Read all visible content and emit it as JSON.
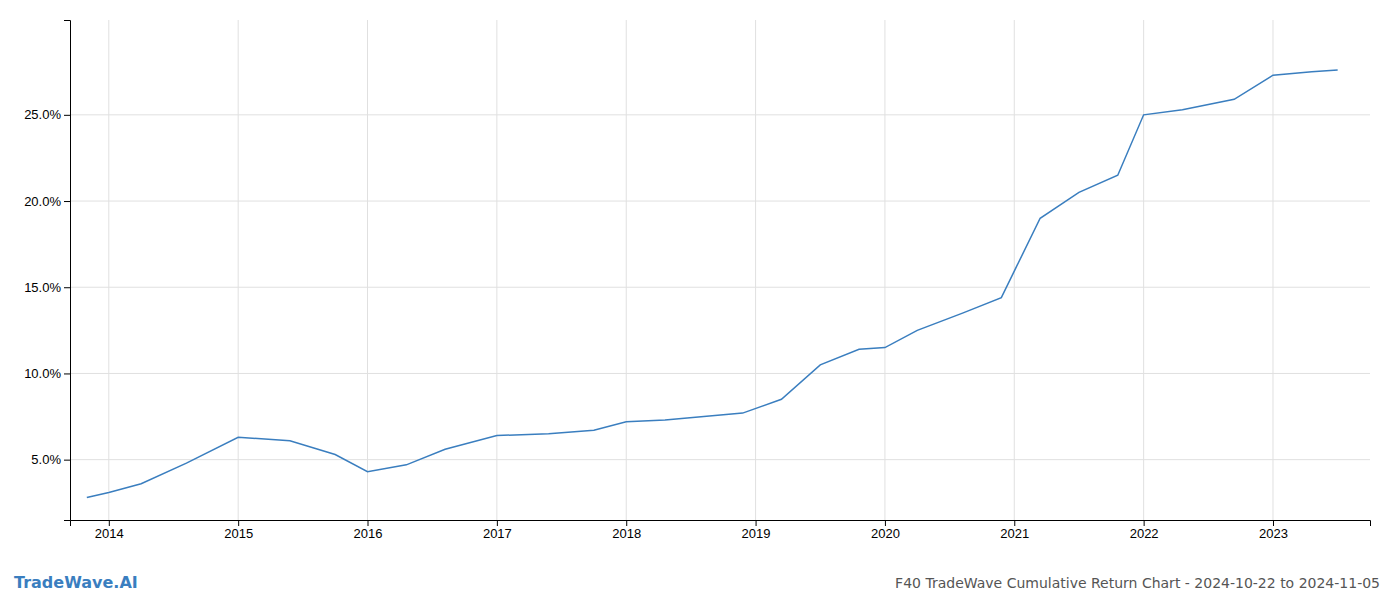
{
  "chart_data": {
    "type": "line",
    "title": "F40 TradeWave Cumulative Return Chart - 2024-10-22 to 2024-11-05",
    "annotations": [
      "TradeWave.AI"
    ],
    "x": [
      2013.83,
      2014.0,
      2014.25,
      2014.6,
      2015.0,
      2015.4,
      2015.75,
      2016.0,
      2016.3,
      2016.6,
      2017.0,
      2017.4,
      2017.75,
      2018.0,
      2018.3,
      2018.6,
      2018.9,
      2019.2,
      2019.5,
      2019.8,
      2020.0,
      2020.25,
      2020.6,
      2020.9,
      2021.2,
      2021.5,
      2021.8,
      2022.0,
      2022.3,
      2022.7,
      2023.0,
      2023.3,
      2023.5
    ],
    "values": [
      2.8,
      3.1,
      3.6,
      4.8,
      6.3,
      6.1,
      5.3,
      4.3,
      4.7,
      5.6,
      6.4,
      6.5,
      6.7,
      7.2,
      7.3,
      7.5,
      7.7,
      8.5,
      10.5,
      11.4,
      11.5,
      12.5,
      13.5,
      14.4,
      19.0,
      20.5,
      21.5,
      25.0,
      25.3,
      25.9,
      27.3,
      27.5,
      27.6
    ],
    "color": "#3a7ebf",
    "xlim": [
      2013.7,
      2023.75
    ],
    "ylim": [
      1.5,
      30.5
    ],
    "xticks": [
      2014,
      2015,
      2016,
      2017,
      2018,
      2019,
      2020,
      2021,
      2022,
      2023
    ],
    "yticks": [
      {
        "value": 5.0,
        "label": "5.0%"
      },
      {
        "value": 10.0,
        "label": "10.0%"
      },
      {
        "value": 15.0,
        "label": "15.0%"
      },
      {
        "value": 20.0,
        "label": "20.0%"
      },
      {
        "value": 25.0,
        "label": "25.0%"
      }
    ],
    "grid": true
  }
}
